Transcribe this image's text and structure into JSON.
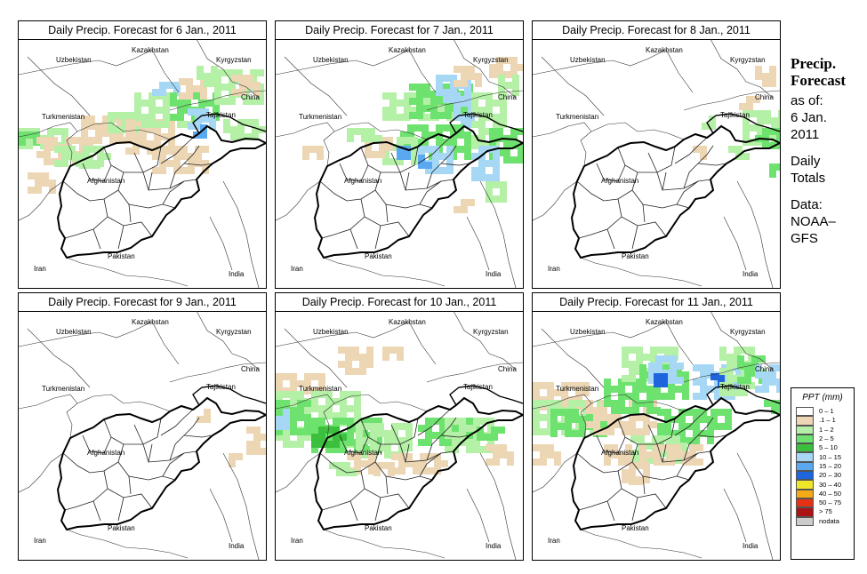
{
  "panels": [
    {
      "title": "Daily Precip. Forecast for  6 Jan., 2011"
    },
    {
      "title": "Daily Precip. Forecast for  7 Jan., 2011"
    },
    {
      "title": "Daily Precip. Forecast for  8 Jan., 2011"
    },
    {
      "title": "Daily Precip. Forecast for  9 Jan., 2011"
    },
    {
      "title": "Daily Precip. Forecast for  10 Jan., 2011"
    },
    {
      "title": "Daily Precip. Forecast for  11 Jan., 2011"
    }
  ],
  "countries": {
    "uzbekistan": "Uzbekistan",
    "kazakhstan": "Kazakhstan",
    "kyrgyzstan": "Kyrgyzstan",
    "china": "China",
    "turkmenistan": "Turkmenistan",
    "tajikistan": "Tajikistan",
    "afghanistan": "Afghanistan",
    "iran": "Iran",
    "pakistan": "Pakistan",
    "india": "India"
  },
  "sidebar": {
    "title_line1": "Precip.",
    "title_line2": "Forecast",
    "asof_line1": "as of:",
    "asof_line2": "6 Jan.",
    "asof_line3": "2011",
    "totals_line1": "Daily",
    "totals_line2": "Totals",
    "data_line1": "Data:",
    "data_line2": "NOAA–",
    "data_line3": "GFS"
  },
  "legend": {
    "title": "PPT (mm)",
    "items": [
      {
        "label": "0 – 1",
        "color": "#ffffff"
      },
      {
        "label": ".1 – 1",
        "color": "#ecd6b4"
      },
      {
        "label": "1 – 2",
        "color": "#b4f0a6"
      },
      {
        "label": "2 – 5",
        "color": "#6ee26e"
      },
      {
        "label": "5 – 10",
        "color": "#3cbf3c"
      },
      {
        "label": "10 – 15",
        "color": "#a6d8f5"
      },
      {
        "label": "15 – 20",
        "color": "#5aa8f0"
      },
      {
        "label": "20 – 30",
        "color": "#1e64dc"
      },
      {
        "label": "30 – 40",
        "color": "#f0e628"
      },
      {
        "label": "40 – 50",
        "color": "#f5aa14"
      },
      {
        "label": "50 – 75",
        "color": "#e63214"
      },
      {
        "label": "> 75",
        "color": "#aa1414"
      },
      {
        "label": "nodata",
        "color": "#cccccc"
      }
    ]
  }
}
